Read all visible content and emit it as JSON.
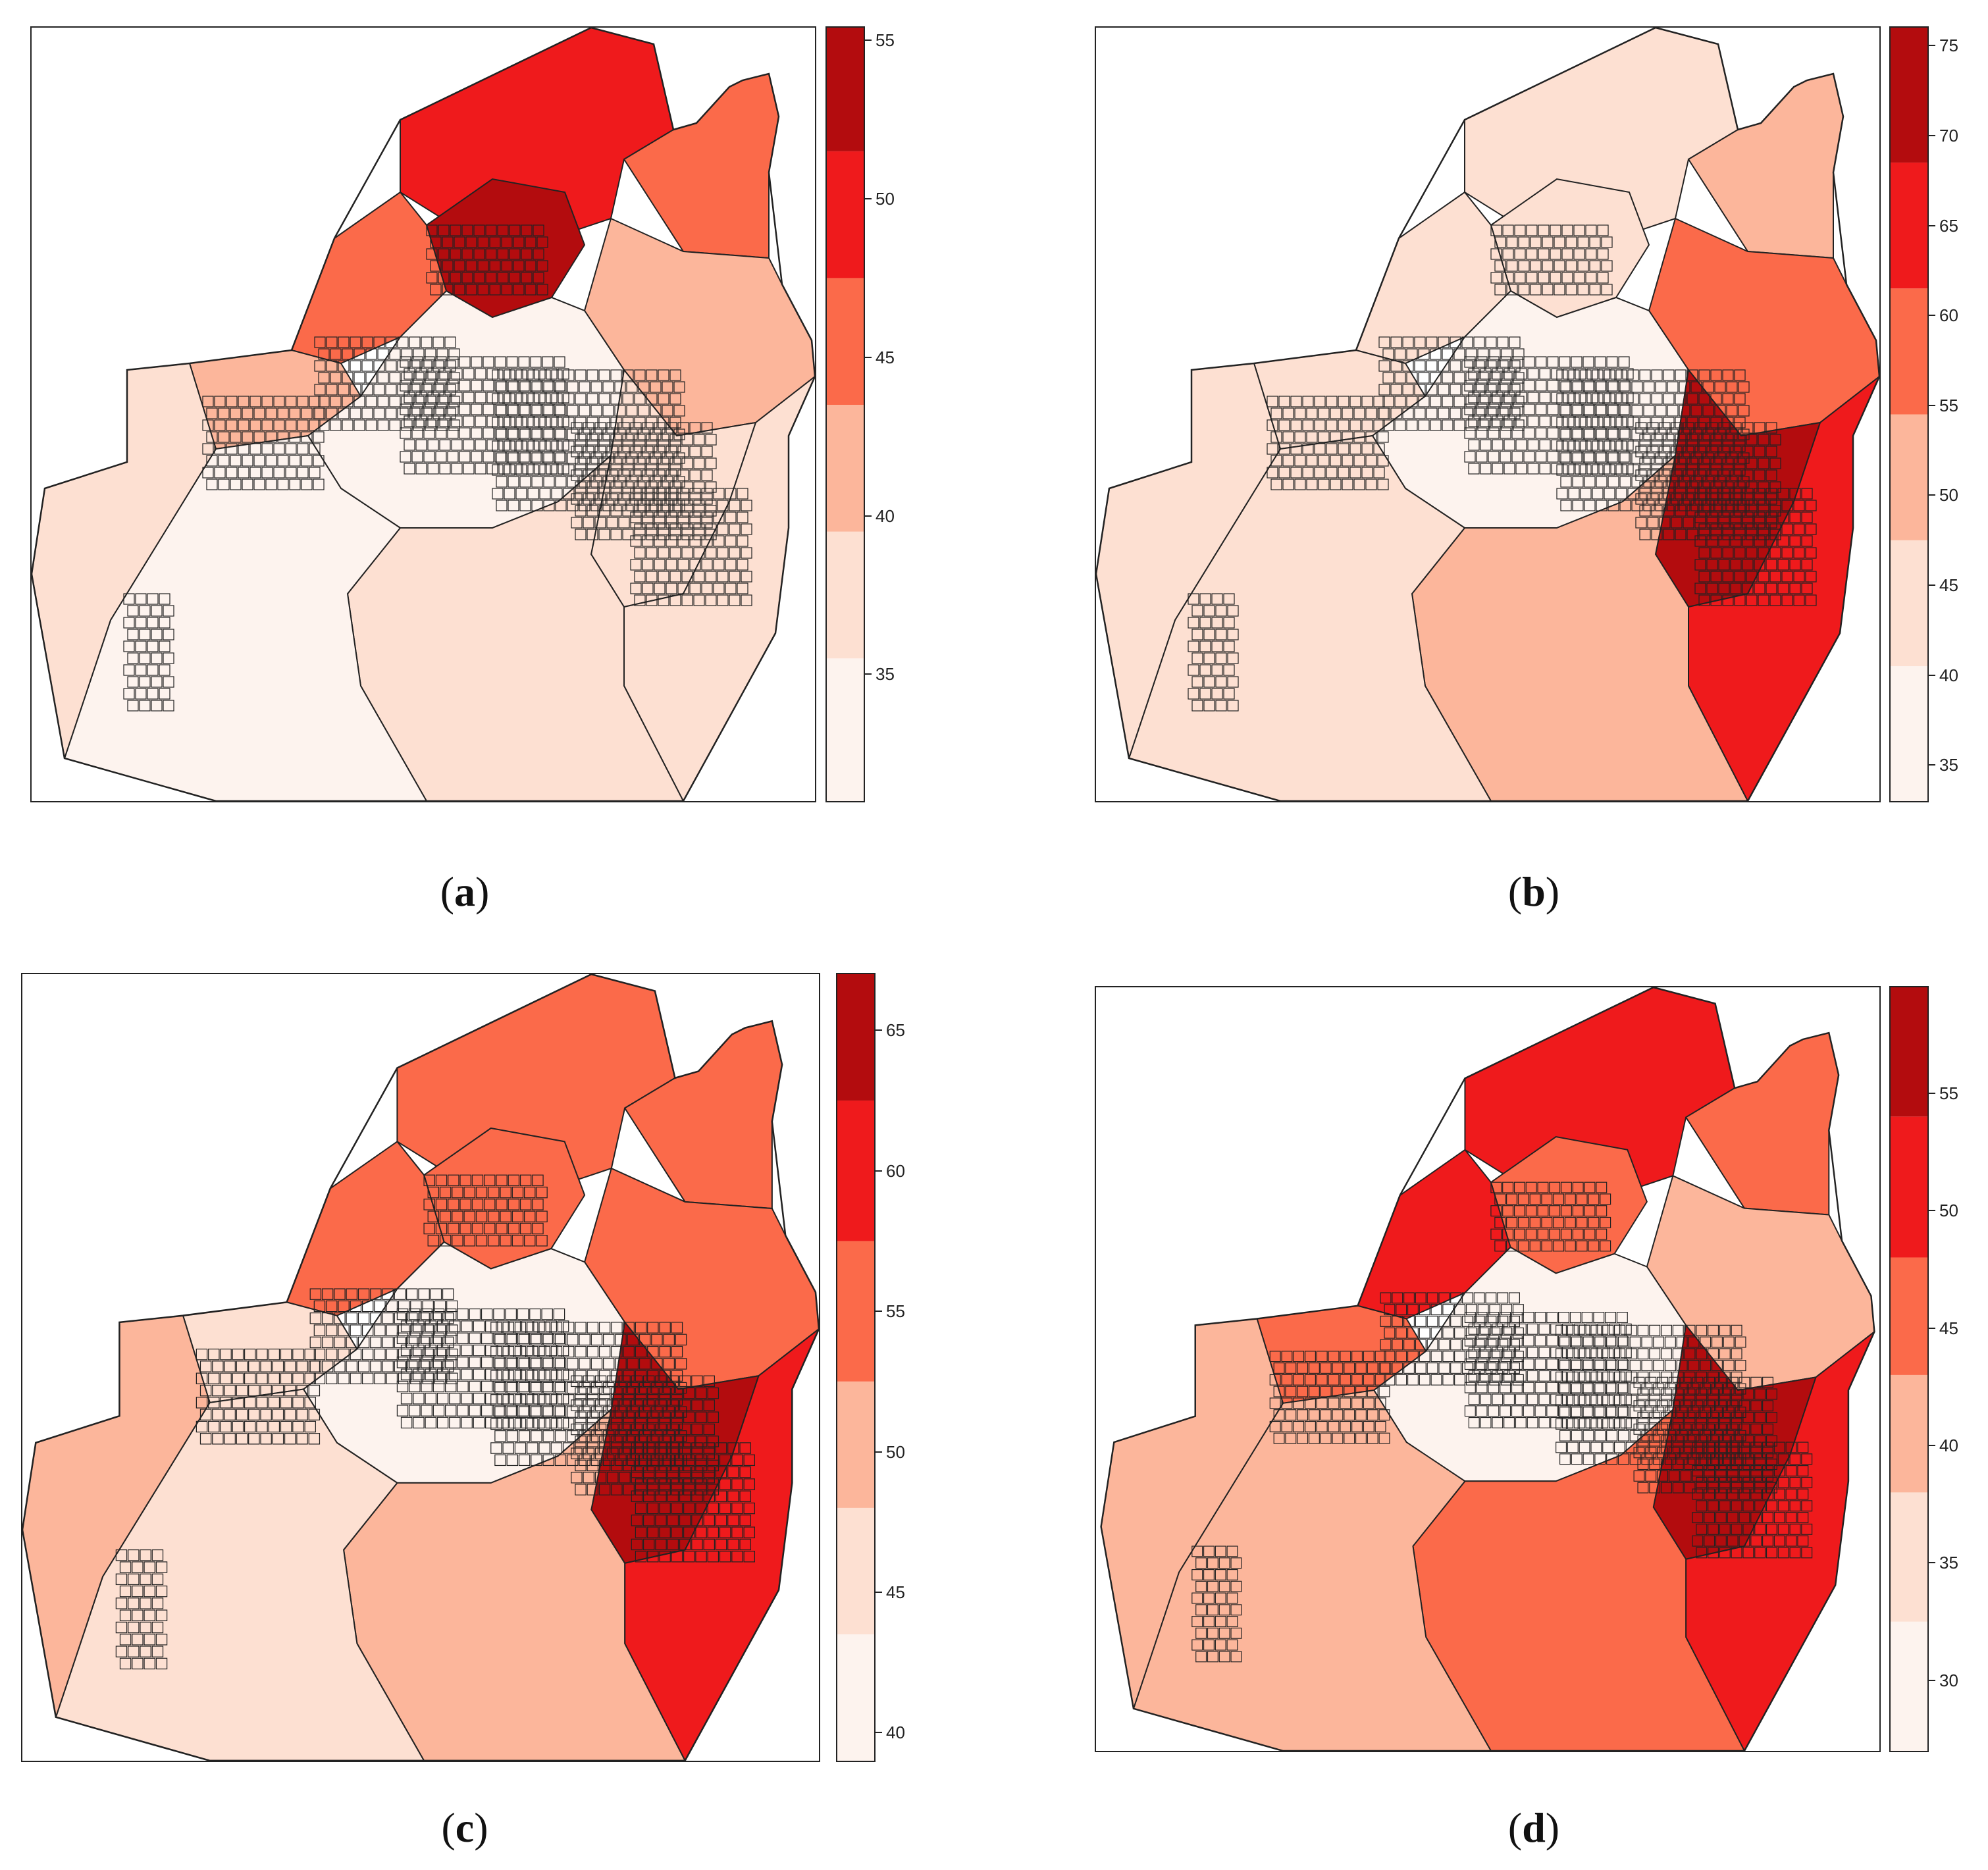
{
  "palette": [
    "#fdf3ee",
    "#fde0d2",
    "#fcb69b",
    "#fb6a4a",
    "#ef1a1c",
    "#b30c0e"
  ],
  "border_color": "#222222",
  "panels": [
    {
      "id": "a",
      "caption_open": "(",
      "caption_letter": "a",
      "caption_close": ")",
      "legend": {
        "min": 31,
        "max": 55.4,
        "breaks": [
          31,
          35.5,
          39.5,
          43.5,
          47.5,
          51.5,
          55.4
        ],
        "ticks": [
          35,
          40,
          45,
          50,
          55
        ]
      },
      "hotspots": [
        "north-center"
      ]
    },
    {
      "id": "b",
      "caption_open": "(",
      "caption_letter": "b",
      "caption_close": ")",
      "legend": {
        "min": 33,
        "max": 76,
        "breaks": [
          33,
          40.5,
          47.5,
          54.5,
          61.5,
          68.5,
          76
        ],
        "ticks": [
          35,
          40,
          45,
          50,
          55,
          60,
          65,
          70,
          75
        ]
      },
      "hotspots": [
        "south-east"
      ]
    },
    {
      "id": "c",
      "caption_open": "(",
      "caption_letter": "c",
      "caption_close": ")",
      "legend": {
        "min": 39,
        "max": 67,
        "breaks": [
          39,
          43.5,
          48,
          52.5,
          57.5,
          62.5,
          67
        ],
        "ticks": [
          40,
          45,
          50,
          55,
          60,
          65
        ]
      },
      "hotspots": [
        "south-east",
        "north"
      ]
    },
    {
      "id": "d",
      "caption_open": "(",
      "caption_letter": "d",
      "caption_close": ")",
      "legend": {
        "min": 27,
        "max": 59.5,
        "breaks": [
          27,
          32.5,
          38,
          43,
          48,
          54,
          59.5
        ],
        "ticks": [
          30,
          35,
          40,
          45,
          50,
          55
        ]
      },
      "hotspots": [
        "south-east",
        "north-west"
      ]
    }
  ]
}
